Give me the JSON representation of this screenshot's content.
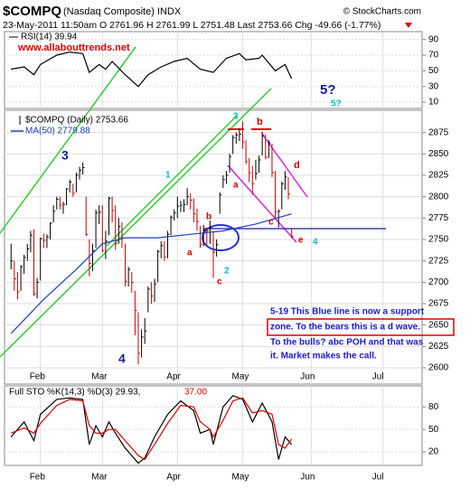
{
  "header": {
    "symbol": "$COMPQ",
    "name": "(Nasdaq Composite) INDX",
    "quote": "23-May-2011 11:50am  O 2761.96  H 2761.99  L 2751.48  Last 2753.66  Chg -49.66 (-1.77%)",
    "copyright": "© StockCharts.com"
  },
  "website": "www.allabouttrends.net",
  "note": [
    "5-19 This Blue line is now a support",
    "zone. To the bears this is a d wave.",
    "To the bulls? abc POH and that was",
    "it. Market makes the call."
  ],
  "chart_data": [
    {
      "type": "line",
      "legend": "RSI(14) 39.94",
      "xlim": [
        -2,
        126
      ],
      "ylim": [
        2,
        100
      ],
      "yticks": [
        90,
        70,
        50,
        30,
        10
      ],
      "grid": true,
      "series": [
        {
          "color": "#000000",
          "x": [
            0,
            4,
            7,
            9,
            14,
            18,
            22,
            24,
            27,
            29,
            31,
            35,
            39,
            42,
            46,
            50,
            54,
            58,
            62,
            66,
            70,
            72,
            76,
            77,
            81,
            84,
            86
          ],
          "values": [
            52,
            55,
            45,
            58,
            70,
            74,
            72,
            48,
            58,
            52,
            62,
            45,
            30,
            45,
            55,
            62,
            66,
            52,
            48,
            66,
            72,
            64,
            66,
            70,
            50,
            58,
            39.94
          ]
        }
      ]
    },
    {
      "type": "ohlc",
      "legend": "$COMPQ (Daily) 2753.66",
      "xlim": [
        -2,
        126
      ],
      "ylim": [
        2581,
        2901
      ],
      "yticks": [
        2875,
        2850,
        2825,
        2800,
        2775,
        2750,
        2725,
        2700,
        2675,
        2650,
        2625,
        2600
      ],
      "grid": true,
      "xticks": [
        {
          "value": 9,
          "label": "Feb"
        },
        {
          "value": 28,
          "label": "Mar"
        },
        {
          "value": 51,
          "label": "Apr"
        },
        {
          "value": 71,
          "label": "May"
        },
        {
          "value": 92,
          "label": "Jun"
        },
        {
          "value": 114,
          "label": "Jul"
        }
      ],
      "up_color": "#000000",
      "down_color": "#cc0000",
      "high": [
        2745,
        2725,
        2712,
        2720,
        2732,
        2745,
        2760,
        2762,
        2705,
        2752,
        2757,
        2756,
        2770,
        2790,
        2800,
        2800,
        2794,
        2810,
        2820,
        2815,
        2828,
        2835,
        2840,
        2800,
        2750,
        2745,
        2785,
        2790,
        2790,
        2760,
        2800,
        2800,
        2790,
        2775,
        2770,
        2745,
        2718,
        2712,
        2690,
        2665,
        2645,
        2658,
        2695,
        2700,
        2704,
        2738,
        2748,
        2748,
        2760,
        2778,
        2785,
        2800,
        2795,
        2797,
        2810,
        2804,
        2798,
        2786,
        2766,
        2767,
        2764,
        2772,
        2760,
        2750,
        2805,
        2825,
        2830,
        2850,
        2872,
        2875,
        2880,
        2888,
        2866,
        2845,
        2836,
        2843,
        2848,
        2876,
        2873,
        2866,
        2862,
        2830,
        2785,
        2818,
        2830,
        2823,
        2761.99
      ],
      "low": [
        2715,
        2690,
        2680,
        2690,
        2710,
        2725,
        2735,
        2684,
        2681,
        2702,
        2740,
        2740,
        2750,
        2770,
        2785,
        2785,
        2780,
        2790,
        2805,
        2800,
        2805,
        2820,
        2826,
        2754,
        2707,
        2713,
        2740,
        2768,
        2735,
        2727,
        2755,
        2770,
        2738,
        2745,
        2740,
        2695,
        2695,
        2688,
        2638,
        2604,
        2612,
        2628,
        2665,
        2675,
        2677,
        2700,
        2728,
        2725,
        2728,
        2755,
        2772,
        2775,
        2782,
        2782,
        2790,
        2785,
        2770,
        2760,
        2740,
        2742,
        2744,
        2745,
        2705,
        2730,
        2780,
        2810,
        2815,
        2828,
        2850,
        2862,
        2865,
        2856,
        2838,
        2817,
        2802,
        2820,
        2828,
        2848,
        2844,
        2845,
        2823,
        2774,
        2764,
        2785,
        2808,
        2797,
        2751.48
      ],
      "close": [
        2725,
        2704,
        2689,
        2718,
        2729,
        2739,
        2755,
        2686,
        2700,
        2751,
        2749,
        2753,
        2769,
        2783,
        2797,
        2790,
        2791,
        2809,
        2817,
        2804,
        2825,
        2831,
        2834,
        2756,
        2722,
        2737,
        2781,
        2782,
        2737,
        2748,
        2798,
        2784,
        2745,
        2765,
        2752,
        2701,
        2715,
        2700,
        2667,
        2617,
        2636,
        2643,
        2692,
        2684,
        2698,
        2736,
        2743,
        2730,
        2756,
        2776,
        2781,
        2789,
        2790,
        2791,
        2800,
        2796,
        2780,
        2771,
        2744,
        2761,
        2760,
        2764,
        2735,
        2744,
        2802,
        2820,
        2825,
        2847,
        2869,
        2872,
        2873,
        2864,
        2841,
        2828,
        2815,
        2827,
        2843,
        2871,
        2846,
        2863,
        2828,
        2782,
        2783,
        2815,
        2823,
        2803,
        2753.66
      ],
      "series": [
        {
          "name": "MA(50) 2779.88",
          "color": "#1f3fbf",
          "x": [
            0,
            10,
            20,
            28,
            35,
            45,
            55,
            65,
            75,
            86
          ],
          "values": [
            2640,
            2680,
            2715,
            2745,
            2752,
            2752,
            2756,
            2760,
            2768,
            2779.88
          ]
        }
      ],
      "annotations": [
        {
          "text": "3",
          "color": "#1a1a9a"
        },
        {
          "text": "1",
          "color": "#00c0c8"
        },
        {
          "text": "3",
          "color": "#00c0c8"
        },
        {
          "text": "b",
          "color": "#cc0000"
        },
        {
          "text": "a",
          "color": "#cc0000"
        },
        {
          "text": "c",
          "color": "#cc0000"
        },
        {
          "text": "2",
          "color": "#00c0c8"
        },
        {
          "text": "4",
          "color": "#1a1a9a"
        },
        {
          "text": "5?",
          "color": "#1a1a9a"
        },
        {
          "text": "5?",
          "color": "#00c0c8"
        },
        {
          "text": "a",
          "color": "#cc0000"
        },
        {
          "text": "b",
          "color": "#cc0000"
        },
        {
          "text": "c",
          "color": "#cc0000"
        },
        {
          "text": "d",
          "color": "#cc0000"
        },
        {
          "text": "e",
          "color": "#cc0000"
        },
        {
          "text": "4",
          "color": "#00c0c8"
        }
      ]
    },
    {
      "type": "line",
      "legend": "Full STO %K(14,3) %D(3) 29.93,",
      "legend_d": "37.00",
      "xlim": [
        -2,
        126
      ],
      "ylim": [
        2,
        108
      ],
      "yticks": [
        80,
        50,
        20
      ],
      "grid": true,
      "xticks": [
        {
          "value": 9,
          "label": "Feb"
        },
        {
          "value": 28,
          "label": "Mar"
        },
        {
          "value": 51,
          "label": "Apr"
        },
        {
          "value": 71,
          "label": "May"
        },
        {
          "value": 92,
          "label": "Jun"
        },
        {
          "value": 114,
          "label": "Jul"
        }
      ],
      "series": [
        {
          "color": "#000000",
          "x": [
            0,
            4,
            7,
            9,
            14,
            18,
            22,
            24,
            26,
            28,
            30,
            32,
            35,
            39,
            41,
            44,
            48,
            52,
            56,
            58,
            61,
            62,
            65,
            68,
            71,
            74,
            77,
            80,
            82,
            84,
            86
          ],
          "values": [
            40,
            60,
            35,
            70,
            90,
            92,
            90,
            30,
            55,
            40,
            60,
            45,
            25,
            5,
            12,
            40,
            70,
            88,
            75,
            45,
            50,
            30,
            80,
            95,
            90,
            60,
            85,
            60,
            10,
            40,
            29.93
          ]
        },
        {
          "color": "#dd0000",
          "x": [
            0,
            4,
            7,
            9,
            14,
            18,
            22,
            24,
            26,
            28,
            30,
            32,
            35,
            39,
            41,
            44,
            48,
            52,
            56,
            58,
            61,
            62,
            65,
            68,
            71,
            74,
            77,
            80,
            82,
            84,
            86
          ],
          "values": [
            45,
            52,
            45,
            58,
            82,
            90,
            88,
            55,
            45,
            45,
            50,
            50,
            35,
            15,
            10,
            30,
            58,
            82,
            80,
            60,
            50,
            40,
            62,
            88,
            92,
            72,
            75,
            70,
            30,
            25,
            37
          ]
        }
      ]
    }
  ]
}
